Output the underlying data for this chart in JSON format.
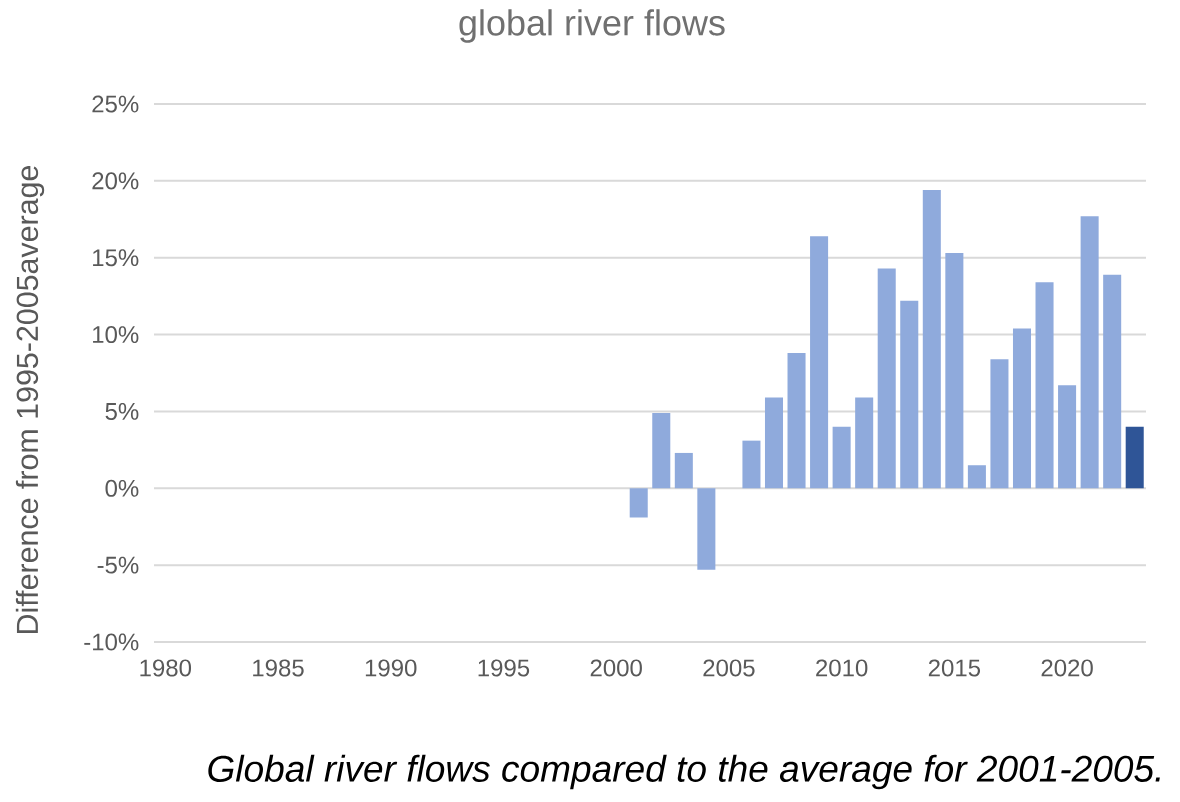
{
  "chart_data": {
    "type": "bar",
    "title": "global river flows",
    "ylabel": "Difference from 1995-2005average",
    "annotations": [
      "Global river flows compared to the average for 2001-2005."
    ],
    "x": [
      2001,
      2002,
      2003,
      2004,
      2005,
      2006,
      2007,
      2008,
      2009,
      2010,
      2011,
      2012,
      2013,
      2014,
      2015,
      2016,
      2017,
      2018,
      2019,
      2020,
      2021,
      2022,
      2023
    ],
    "values": [
      -1.9,
      4.9,
      2.3,
      -5.3,
      null,
      3.1,
      5.9,
      8.8,
      16.4,
      4.0,
      5.9,
      14.3,
      12.2,
      19.4,
      15.3,
      1.5,
      8.4,
      10.4,
      13.4,
      6.7,
      17.7,
      13.9,
      4.0
    ],
    "colors": [
      "#8faadc",
      "#8faadc",
      "#8faadc",
      "#8faadc",
      "#8faadc",
      "#8faadc",
      "#8faadc",
      "#8faadc",
      "#8faadc",
      "#8faadc",
      "#8faadc",
      "#8faadc",
      "#8faadc",
      "#8faadc",
      "#8faadc",
      "#8faadc",
      "#8faadc",
      "#8faadc",
      "#8faadc",
      "#8faadc",
      "#8faadc",
      "#8faadc",
      "#2f5597"
    ],
    "xlim": [
      1979.5,
      2023.5
    ],
    "xticks": [
      1980,
      1985,
      1990,
      1995,
      2000,
      2005,
      2010,
      2015,
      2020
    ],
    "ylim": [
      -10,
      25
    ],
    "yticks": [
      {
        "value": -10,
        "label": "-10%"
      },
      {
        "value": -5,
        "label": "-5%"
      },
      {
        "value": 0,
        "label": "0%"
      },
      {
        "value": 5,
        "label": "5%"
      },
      {
        "value": 10,
        "label": "10%"
      },
      {
        "value": 15,
        "label": "15%"
      },
      {
        "value": 20,
        "label": "20%"
      },
      {
        "value": 25,
        "label": "25%"
      }
    ],
    "grid": "y"
  }
}
